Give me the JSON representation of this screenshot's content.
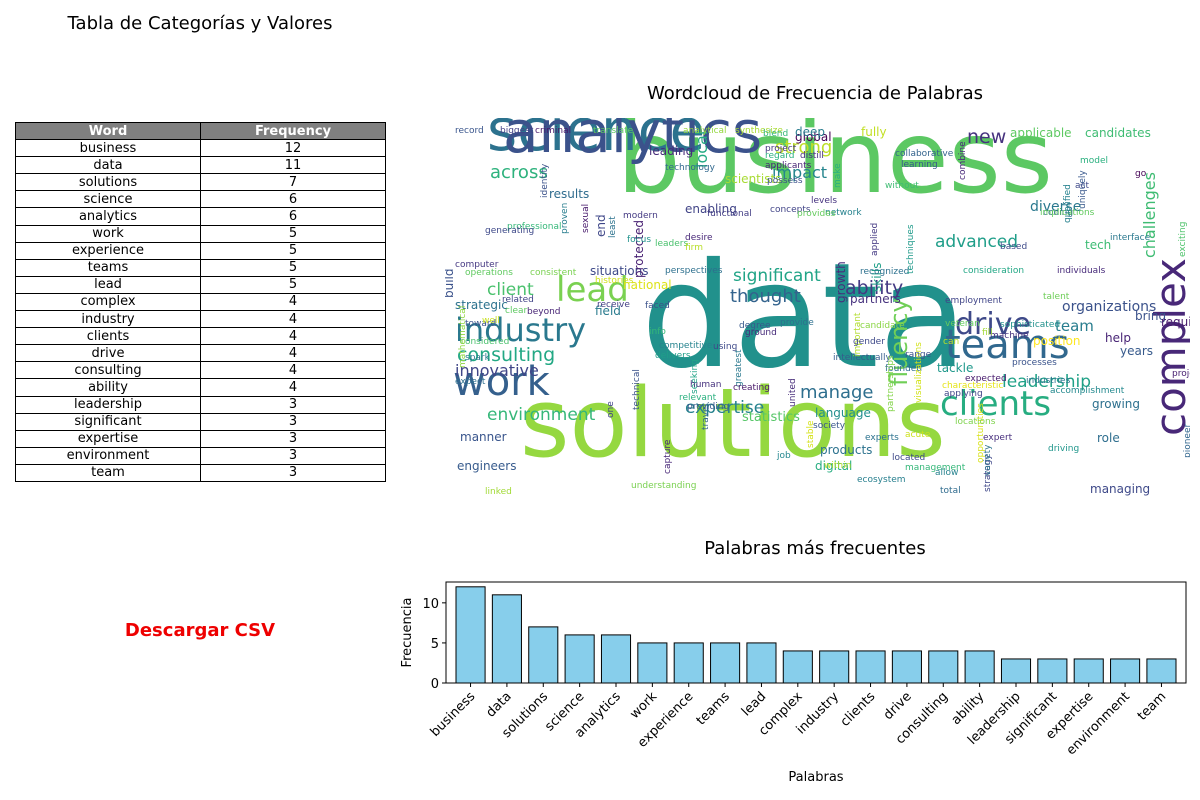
{
  "table": {
    "title": "Tabla de Categorías y Valores",
    "headers": [
      "Word",
      "Frequency"
    ],
    "rows": [
      [
        "business",
        "12"
      ],
      [
        "data",
        "11"
      ],
      [
        "solutions",
        "7"
      ],
      [
        "science",
        "6"
      ],
      [
        "analytics",
        "6"
      ],
      [
        "work",
        "5"
      ],
      [
        "experience",
        "5"
      ],
      [
        "teams",
        "5"
      ],
      [
        "lead",
        "5"
      ],
      [
        "complex",
        "4"
      ],
      [
        "industry",
        "4"
      ],
      [
        "clients",
        "4"
      ],
      [
        "drive",
        "4"
      ],
      [
        "consulting",
        "4"
      ],
      [
        "ability",
        "4"
      ],
      [
        "leadership",
        "3"
      ],
      [
        "significant",
        "3"
      ],
      [
        "expertise",
        "3"
      ],
      [
        "environment",
        "3"
      ],
      [
        "team",
        "3"
      ]
    ]
  },
  "download_label": "Descargar CSV",
  "wordcloud": {
    "title": "Wordcloud de Frecuencia de Palabras",
    "words": [
      {
        "text": "business",
        "color": "#5cc863"
      },
      {
        "text": "data",
        "color": "#21918c"
      },
      {
        "text": "solutions",
        "color": "#95d840"
      },
      {
        "text": "science",
        "color": "#2c728e"
      },
      {
        "text": "analytics",
        "color": "#3b528b"
      },
      {
        "text": "experience",
        "color": "#440154"
      },
      {
        "text": "teams",
        "color": "#31688e"
      },
      {
        "text": "complex",
        "color": "#482878"
      },
      {
        "text": "clients",
        "color": "#27ad81"
      },
      {
        "text": "work",
        "color": "#35608d"
      },
      {
        "text": "lead",
        "color": "#7ad151"
      },
      {
        "text": "industry",
        "color": "#2a788e"
      },
      {
        "text": "drive",
        "color": "#3e4989"
      },
      {
        "text": "consulting",
        "color": "#22a884"
      },
      {
        "text": "ability",
        "color": "#443983"
      },
      {
        "text": "leadership",
        "color": "#1fa187"
      },
      {
        "text": "significant",
        "color": "#20a486"
      },
      {
        "text": "expertise",
        "color": "#26828e"
      },
      {
        "text": "environment",
        "color": "#35b779"
      },
      {
        "text": "team",
        "color": "#287d8e"
      },
      {
        "text": "challenges",
        "color": "#3fbc73"
      },
      {
        "text": "advanced",
        "color": "#1f9e89"
      },
      {
        "text": "impact",
        "color": "#25858e"
      },
      {
        "text": "strong",
        "color": "#bddf26"
      },
      {
        "text": "across",
        "color": "#2db27d"
      },
      {
        "text": "new",
        "color": "#46327e"
      },
      {
        "text": "client",
        "color": "#4ac16d"
      },
      {
        "text": "fluency",
        "color": "#70cf57"
      },
      {
        "text": "thought",
        "color": "#33638d"
      },
      {
        "text": "manage",
        "color": "#2e6f8e"
      },
      {
        "text": "innovative",
        "color": "#404688"
      },
      {
        "text": "organizations",
        "color": "#3b528b"
      },
      {
        "text": "local",
        "color": "#24aa83"
      },
      {
        "text": "statistics",
        "color": "#56c667"
      },
      {
        "text": "diverse",
        "color": "#2a788e"
      },
      {
        "text": "applicable",
        "color": "#5ec962"
      },
      {
        "text": "candidates",
        "color": "#3fbc73"
      },
      {
        "text": "strategic",
        "color": "#2c728e"
      },
      {
        "text": "engineers",
        "color": "#375b8d"
      },
      {
        "text": "managing",
        "color": "#3e4989"
      },
      {
        "text": "growing",
        "color": "#2d708e"
      },
      {
        "text": "language",
        "color": "#218f8d"
      },
      {
        "text": "products",
        "color": "#2c728e"
      },
      {
        "text": "digital",
        "color": "#27ad81"
      },
      {
        "text": "global",
        "color": "#440154"
      },
      {
        "text": "scientists",
        "color": "#a8db34"
      },
      {
        "text": "partners",
        "color": "#46327e"
      },
      {
        "text": "results",
        "color": "#2f6c8e"
      },
      {
        "text": "national",
        "color": "#dde318"
      },
      {
        "text": "growth",
        "color": "#472d7b"
      },
      {
        "text": "manner",
        "color": "#39558c"
      },
      {
        "text": "tech",
        "color": "#3dbc74"
      },
      {
        "text": "bring",
        "color": "#3b528b"
      },
      {
        "text": "required",
        "color": "#481a6c"
      },
      {
        "text": "role",
        "color": "#2e6e8e"
      },
      {
        "text": "help",
        "color": "#482475"
      },
      {
        "text": "years",
        "color": "#375a8c"
      },
      {
        "text": "position",
        "color": "#fde725"
      },
      {
        "text": "tackle",
        "color": "#1f988b"
      },
      {
        "text": "field",
        "color": "#297b8e"
      },
      {
        "text": "situations",
        "color": "#3e4a89"
      },
      {
        "text": "enabling",
        "color": "#414487"
      },
      {
        "text": "leading",
        "color": "#472c7a"
      },
      {
        "text": "deep",
        "color": "#287c8e"
      },
      {
        "text": "fully",
        "color": "#c2df23"
      },
      {
        "text": "end",
        "color": "#3f4788"
      },
      {
        "text": "build",
        "color": "#3b528b"
      },
      {
        "text": "protected",
        "color": "#482173"
      },
      {
        "text": "skills",
        "color": "#1fa088"
      },
      {
        "text": "intellectually",
        "color": "#365d8d"
      },
      {
        "text": "management",
        "color": "#35b779"
      },
      {
        "text": "opportunities",
        "color": "#d8e219"
      },
      {
        "text": "strategy",
        "color": "#3f4788"
      },
      {
        "text": "expert",
        "color": "#472f7d"
      },
      {
        "text": "machine",
        "color": "#46327e"
      },
      {
        "text": "sophisticated",
        "color": "#21918c"
      },
      {
        "text": "projects",
        "color": "#482071"
      },
      {
        "text": "uniquely",
        "color": "#38588c"
      },
      {
        "text": "interface",
        "color": "#2a788e"
      },
      {
        "text": "coding",
        "color": "#31688e"
      },
      {
        "text": "based",
        "color": "#3e4a89"
      },
      {
        "text": "network",
        "color": "#26828e"
      },
      {
        "text": "concepts",
        "color": "#414487"
      },
      {
        "text": "make",
        "color": "#2ab07f"
      },
      {
        "text": "desire",
        "color": "#482878"
      },
      {
        "text": "focus",
        "color": "#20928c"
      },
      {
        "text": "modern",
        "color": "#443a83"
      },
      {
        "text": "computer",
        "color": "#453882"
      },
      {
        "text": "identity",
        "color": "#3b528b"
      },
      {
        "text": "professional",
        "color": "#35b779"
      },
      {
        "text": "generating",
        "color": "#3e4989"
      },
      {
        "text": "proven",
        "color": "#287d8e"
      },
      {
        "text": "least",
        "color": "#2c728e"
      },
      {
        "text": "operations",
        "color": "#60ca60"
      },
      {
        "text": "consistent",
        "color": "#7ad151"
      },
      {
        "text": "histories",
        "color": "#d0e11c"
      },
      {
        "text": "receive",
        "color": "#433e85"
      },
      {
        "text": "clear",
        "color": "#5ec962"
      },
      {
        "text": "toward",
        "color": "#3b528b"
      },
      {
        "text": "considered",
        "color": "#4ac16d"
      },
      {
        "text": "linked",
        "color": "#a2da37"
      },
      {
        "text": "expected",
        "color": "#481b6d"
      },
      {
        "text": "applying",
        "color": "#404588"
      },
      {
        "text": "total",
        "color": "#2f6b8e"
      },
      {
        "text": "allow",
        "color": "#26828e"
      },
      {
        "text": "experts",
        "color": "#2c728e"
      },
      {
        "text": "acute",
        "color": "#cde11d"
      },
      {
        "text": "located",
        "color": "#3e4989"
      },
      {
        "text": "society",
        "color": "#39568c"
      },
      {
        "text": "united",
        "color": "#472c7a"
      },
      {
        "text": "provide",
        "color": "#2d708e"
      },
      {
        "text": "related",
        "color": "#414487"
      },
      {
        "text": "beyond",
        "color": "#482576"
      },
      {
        "text": "faced",
        "color": "#3b528b"
      },
      {
        "text": "info",
        "color": "#35b779"
      },
      {
        "text": "degree",
        "color": "#38598c"
      },
      {
        "text": "travel",
        "color": "#31688e"
      },
      {
        "text": "greatest",
        "color": "#2a788e"
      },
      {
        "text": "creating",
        "color": "#481769"
      },
      {
        "text": "seeking",
        "color": "#20a386"
      },
      {
        "text": "job",
        "color": "#24878e"
      },
      {
        "text": "within",
        "color": "#b5de2b"
      },
      {
        "text": "ecosystem",
        "color": "#277f8e"
      },
      {
        "text": "stable",
        "color": "#d5e21a"
      },
      {
        "text": "founded",
        "color": "#2e6d8e"
      },
      {
        "text": "candidate",
        "color": "#8bd646"
      },
      {
        "text": "recognized",
        "color": "#2d718e"
      },
      {
        "text": "applied",
        "color": "#443983"
      },
      {
        "text": "techniques",
        "color": "#1f9a8a"
      },
      {
        "text": "employment",
        "color": "#404588"
      },
      {
        "text": "locations",
        "color": "#7fd34e"
      },
      {
        "text": "consideration",
        "color": "#22a785"
      },
      {
        "text": "individuals",
        "color": "#472a7a"
      },
      {
        "text": "accomplishment",
        "color": "#23898e"
      },
      {
        "text": "industries",
        "color": "#2b748e"
      },
      {
        "text": "processes",
        "color": "#3a538b"
      },
      {
        "text": "driving",
        "color": "#1f968b"
      },
      {
        "text": "pioneer",
        "color": "#31668e"
      },
      {
        "text": "implications",
        "color": "#63cb5f"
      },
      {
        "text": "qualified",
        "color": "#26818e"
      },
      {
        "text": "exciting",
        "color": "#4ec36b"
      },
      {
        "text": "collaborative",
        "color": "#33638d"
      },
      {
        "text": "learning",
        "color": "#375a8c"
      },
      {
        "text": "combine",
        "color": "#482979"
      },
      {
        "text": "provides",
        "color": "#65cb5e"
      },
      {
        "text": "levels",
        "color": "#46337f"
      },
      {
        "text": "regard",
        "color": "#2ab07f"
      },
      {
        "text": "distill",
        "color": "#472f7d"
      },
      {
        "text": "possess",
        "color": "#3c4f8a"
      },
      {
        "text": "applicants",
        "color": "#482475"
      },
      {
        "text": "project",
        "color": "#453781"
      },
      {
        "text": "record",
        "color": "#39558c"
      },
      {
        "text": "biggest",
        "color": "#424186"
      },
      {
        "text": "criminal",
        "color": "#48186a"
      },
      {
        "text": "translate",
        "color": "#5ec962"
      },
      {
        "text": "analytical",
        "color": "#95d840"
      },
      {
        "text": "synthesize",
        "color": "#a8db34"
      },
      {
        "text": "sexual",
        "color": "#481a6c"
      },
      {
        "text": "leaders",
        "color": "#4ac16d"
      },
      {
        "text": "firm",
        "color": "#b8de29"
      },
      {
        "text": "model",
        "color": "#2ab07f"
      },
      {
        "text": "act",
        "color": "#3e4989"
      },
      {
        "text": "go",
        "color": "#440154"
      },
      {
        "text": "without",
        "color": "#3fbc73"
      },
      {
        "text": "well",
        "color": "#c8e020"
      },
      {
        "text": "veteran",
        "color": "#63cb5f"
      },
      {
        "text": "fill",
        "color": "#a2da37"
      },
      {
        "text": "can",
        "color": "#bddf26"
      },
      {
        "text": "mathematical",
        "color": "#90d743"
      },
      {
        "text": "visualizations",
        "color": "#d2e21b"
      },
      {
        "text": "partnerships",
        "color": "#84d44b"
      },
      {
        "text": "characteristic",
        "color": "#e5e419"
      },
      {
        "text": "variety",
        "color": "#2c728e"
      },
      {
        "text": "important",
        "color": "#b2dd2d"
      },
      {
        "text": "gender",
        "color": "#3e4989"
      },
      {
        "text": "providing",
        "color": "#38598c"
      },
      {
        "text": "relevant",
        "color": "#2ab07f"
      },
      {
        "text": "technical",
        "color": "#3b528b"
      },
      {
        "text": "capture",
        "color": "#482878"
      },
      {
        "text": "understanding",
        "color": "#7ad151"
      },
      {
        "text": "human",
        "color": "#46327e"
      },
      {
        "text": "expect",
        "color": "#2e6f8e"
      },
      {
        "text": "spark",
        "color": "#2a788e"
      },
      {
        "text": "using",
        "color": "#3e4989"
      },
      {
        "text": "technology",
        "color": "#31688e"
      },
      {
        "text": "blend",
        "color": "#35b779"
      },
      {
        "text": "ground",
        "color": "#472c7a"
      },
      {
        "text": "functional",
        "color": "#433e85"
      },
      {
        "text": "competitive",
        "color": "#25838e"
      },
      {
        "text": "delivers",
        "color": "#1f9e89"
      },
      {
        "text": "range",
        "color": "#3b528b"
      },
      {
        "text": "talent",
        "color": "#6ece58"
      },
      {
        "text": "perspectives",
        "color": "#2d708e"
      },
      {
        "text": "one",
        "color": "#414487"
      },
      {
        "text": "must",
        "color": "#482173"
      },
      {
        "text": "under",
        "color": "#5ec962"
      }
    ]
  },
  "bar_chart": {
    "title": "Palabras más frecuentes",
    "xlabel": "Palabras",
    "ylabel": "Frecuencia",
    "bar_color": "#87ceeb"
  },
  "chart_data": {
    "type": "bar",
    "categories": [
      "business",
      "data",
      "solutions",
      "science",
      "analytics",
      "work",
      "experience",
      "teams",
      "lead",
      "complex",
      "industry",
      "clients",
      "drive",
      "consulting",
      "ability",
      "leadership",
      "significant",
      "expertise",
      "environment",
      "team"
    ],
    "values": [
      12,
      11,
      7,
      6,
      6,
      5,
      5,
      5,
      5,
      4,
      4,
      4,
      4,
      4,
      4,
      3,
      3,
      3,
      3,
      3
    ],
    "title": "Palabras más frecuentes",
    "xlabel": "Palabras",
    "ylabel": "Frecuencia",
    "ylim": [
      0,
      12.6
    ],
    "yticks": [
      0,
      5,
      10
    ],
    "grid": false
  }
}
